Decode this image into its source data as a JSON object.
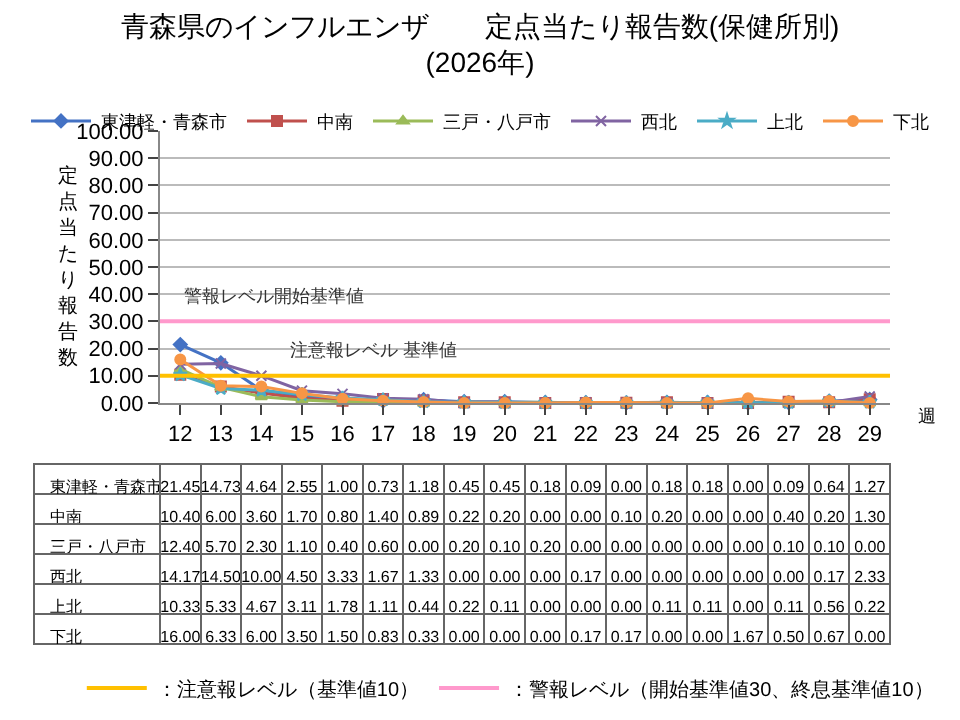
{
  "chart_data": {
    "type": "line",
    "title": "青森県のインフルエンザ　　定点当たり報告数(保健所別)\n(2026年)",
    "xlabel": "週",
    "ylabel": "定点当たり報告数",
    "categories": [
      "12",
      "13",
      "14",
      "15",
      "16",
      "17",
      "18",
      "19",
      "20",
      "21",
      "22",
      "23",
      "24",
      "25",
      "26",
      "27",
      "28",
      "29"
    ],
    "ylim": [
      0,
      100
    ],
    "yticks": [
      {
        "value": 0,
        "label": "0.00"
      },
      {
        "value": 10,
        "label": "10.00"
      },
      {
        "value": 20,
        "label": "20.00"
      },
      {
        "value": 30,
        "label": "30.00"
      },
      {
        "value": 40,
        "label": "40.00"
      },
      {
        "value": 50,
        "label": "50.00"
      },
      {
        "value": 60,
        "label": "60.00"
      },
      {
        "value": 70,
        "label": "70.00"
      },
      {
        "value": 80,
        "label": "80.00"
      },
      {
        "value": 90,
        "label": "90.00"
      },
      {
        "value": 100,
        "label": "100.00"
      }
    ],
    "grid": "y",
    "legend": "top",
    "line_style": "solid",
    "series": [
      {
        "name": "東津軽・青森市",
        "color": "#4472c4",
        "marker": "diamond",
        "values": [
          21.45,
          14.73,
          4.64,
          2.55,
          1.0,
          0.73,
          1.18,
          0.45,
          0.45,
          0.18,
          0.09,
          0.0,
          0.18,
          0.18,
          0.0,
          0.09,
          0.64,
          1.27
        ],
        "value_labels": [
          "21.45",
          "14.73",
          "4.64",
          "2.55",
          "1.00",
          "0.73",
          "1.18",
          "0.45",
          "0.45",
          "0.18",
          "0.09",
          "0.00",
          "0.18",
          "0.18",
          "0.00",
          "0.09",
          "0.64",
          "1.27"
        ]
      },
      {
        "name": "中南",
        "color": "#c0504d",
        "marker": "square",
        "values": [
          10.4,
          6.0,
          3.6,
          1.7,
          0.8,
          1.4,
          0.89,
          0.22,
          0.2,
          0.0,
          0.0,
          0.1,
          0.2,
          0.0,
          0.0,
          0.4,
          0.2,
          1.3
        ],
        "value_labels": [
          "10.40",
          "6.00",
          "3.60",
          "1.70",
          "0.80",
          "1.40",
          "0.89",
          "0.22",
          "0.20",
          "0.00",
          "0.00",
          "0.10",
          "0.20",
          "0.00",
          "0.00",
          "0.40",
          "0.20",
          "1.30"
        ]
      },
      {
        "name": "三戸・八戸市",
        "color": "#9bbb59",
        "marker": "triangle",
        "values": [
          12.4,
          5.7,
          2.3,
          1.1,
          0.4,
          0.6,
          0.0,
          0.2,
          0.1,
          0.2,
          0.0,
          0.0,
          0.0,
          0.0,
          0.0,
          0.1,
          0.1,
          0.0
        ],
        "value_labels": [
          "12.40",
          "5.70",
          "2.30",
          "1.10",
          "0.40",
          "0.60",
          "0.00",
          "0.20",
          "0.10",
          "0.20",
          "0.00",
          "0.00",
          "0.00",
          "0.00",
          "0.00",
          "0.10",
          "0.10",
          "0.00"
        ]
      },
      {
        "name": "西北",
        "color": "#8064a2",
        "marker": "cross",
        "values": [
          14.17,
          14.5,
          10.0,
          4.5,
          3.33,
          1.67,
          1.33,
          0.0,
          0.0,
          0.0,
          0.17,
          0.0,
          0.0,
          0.0,
          0.0,
          0.0,
          0.17,
          2.33
        ],
        "value_labels": [
          "14.17",
          "14.50",
          "10.00",
          "4.50",
          "3.33",
          "1.67",
          "1.33",
          "0.00",
          "0.00",
          "0.00",
          "0.17",
          "0.00",
          "0.00",
          "0.00",
          "0.00",
          "0.00",
          "0.17",
          "2.33"
        ]
      },
      {
        "name": "上北",
        "color": "#4bacc6",
        "marker": "star",
        "values": [
          10.33,
          5.33,
          4.67,
          3.11,
          1.78,
          1.11,
          0.44,
          0.22,
          0.11,
          0.0,
          0.0,
          0.0,
          0.11,
          0.11,
          0.0,
          0.11,
          0.56,
          0.22
        ],
        "value_labels": [
          "10.33",
          "5.33",
          "4.67",
          "3.11",
          "1.78",
          "1.11",
          "0.44",
          "0.22",
          "0.11",
          "0.00",
          "0.00",
          "0.00",
          "0.11",
          "0.11",
          "0.00",
          "0.11",
          "0.56",
          "0.22"
        ]
      },
      {
        "name": "下北",
        "color": "#f79646",
        "marker": "circle",
        "values": [
          16.0,
          6.33,
          6.0,
          3.5,
          1.5,
          0.83,
          0.33,
          0.0,
          0.0,
          0.0,
          0.17,
          0.17,
          0.0,
          0.0,
          1.67,
          0.5,
          0.67,
          0.0
        ],
        "value_labels": [
          "16.00",
          "6.33",
          "6.00",
          "3.50",
          "1.50",
          "0.83",
          "0.33",
          "0.00",
          "0.00",
          "0.00",
          "0.17",
          "0.17",
          "0.00",
          "0.00",
          "1.67",
          "0.50",
          "0.67",
          "0.00"
        ]
      }
    ],
    "ref_lines": [
      {
        "axis": "y",
        "value": 10,
        "label": "注意報レベル 基準値",
        "color": "#ffc000"
      },
      {
        "axis": "y",
        "value": 30,
        "label": "警報レベル開始基準値",
        "color": "#ff99cc"
      }
    ],
    "annotations": [
      "：注意報レベル（基準値10）",
      "：警報レベル（開始基準値30、終息基準値10）"
    ]
  }
}
